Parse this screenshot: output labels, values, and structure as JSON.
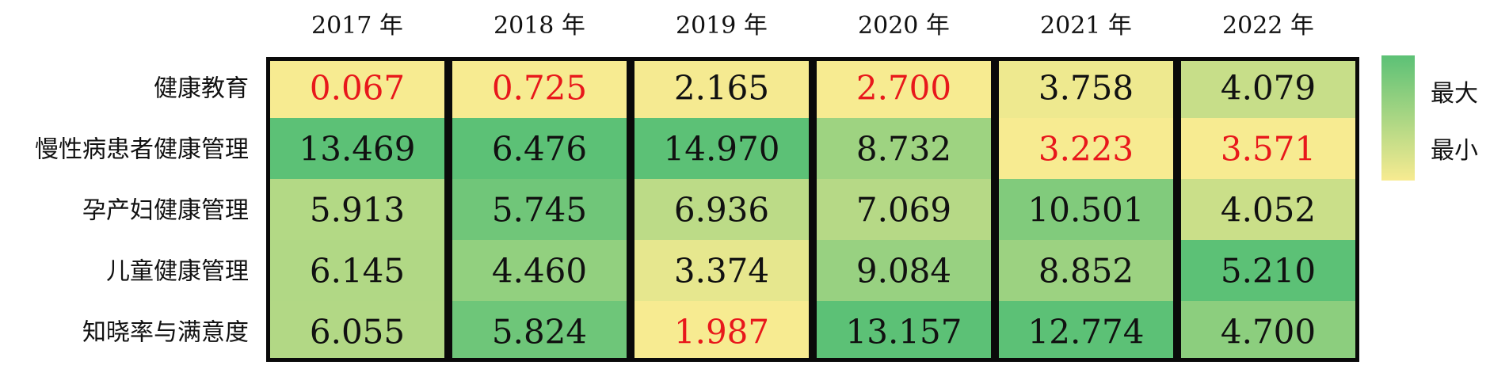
{
  "chart_data": {
    "type": "heatmap",
    "x": [
      "2017 年",
      "2018 年",
      "2019 年",
      "2020 年",
      "2021 年",
      "2022 年"
    ],
    "y": [
      "健康教育",
      "慢性病患者健康管理",
      "孕产妇健康管理",
      "儿童健康管理",
      "知晓率与满意度"
    ],
    "values": [
      [
        "0.067",
        "0.725",
        "2.165",
        "2.700",
        "3.758",
        "4.079"
      ],
      [
        "13.469",
        "6.476",
        "14.970",
        "8.732",
        "3.223",
        "3.571"
      ],
      [
        "5.913",
        "5.745",
        "6.936",
        "7.069",
        "10.501",
        "4.052"
      ],
      [
        "6.145",
        "4.460",
        "3.374",
        "9.084",
        "8.852",
        "5.210"
      ],
      [
        "6.055",
        "5.824",
        "1.987",
        "13.157",
        "12.774",
        "4.700"
      ]
    ],
    "color_scale": "per-column",
    "colors": {
      "max": "#5cc176",
      "min": "#f7eb91",
      "min_text": "#e8181b",
      "text": "#111111",
      "border": "#0a0a0a"
    },
    "legend": {
      "labels": [
        "最大",
        "最小"
      ],
      "placement": "right"
    },
    "grid": false
  }
}
